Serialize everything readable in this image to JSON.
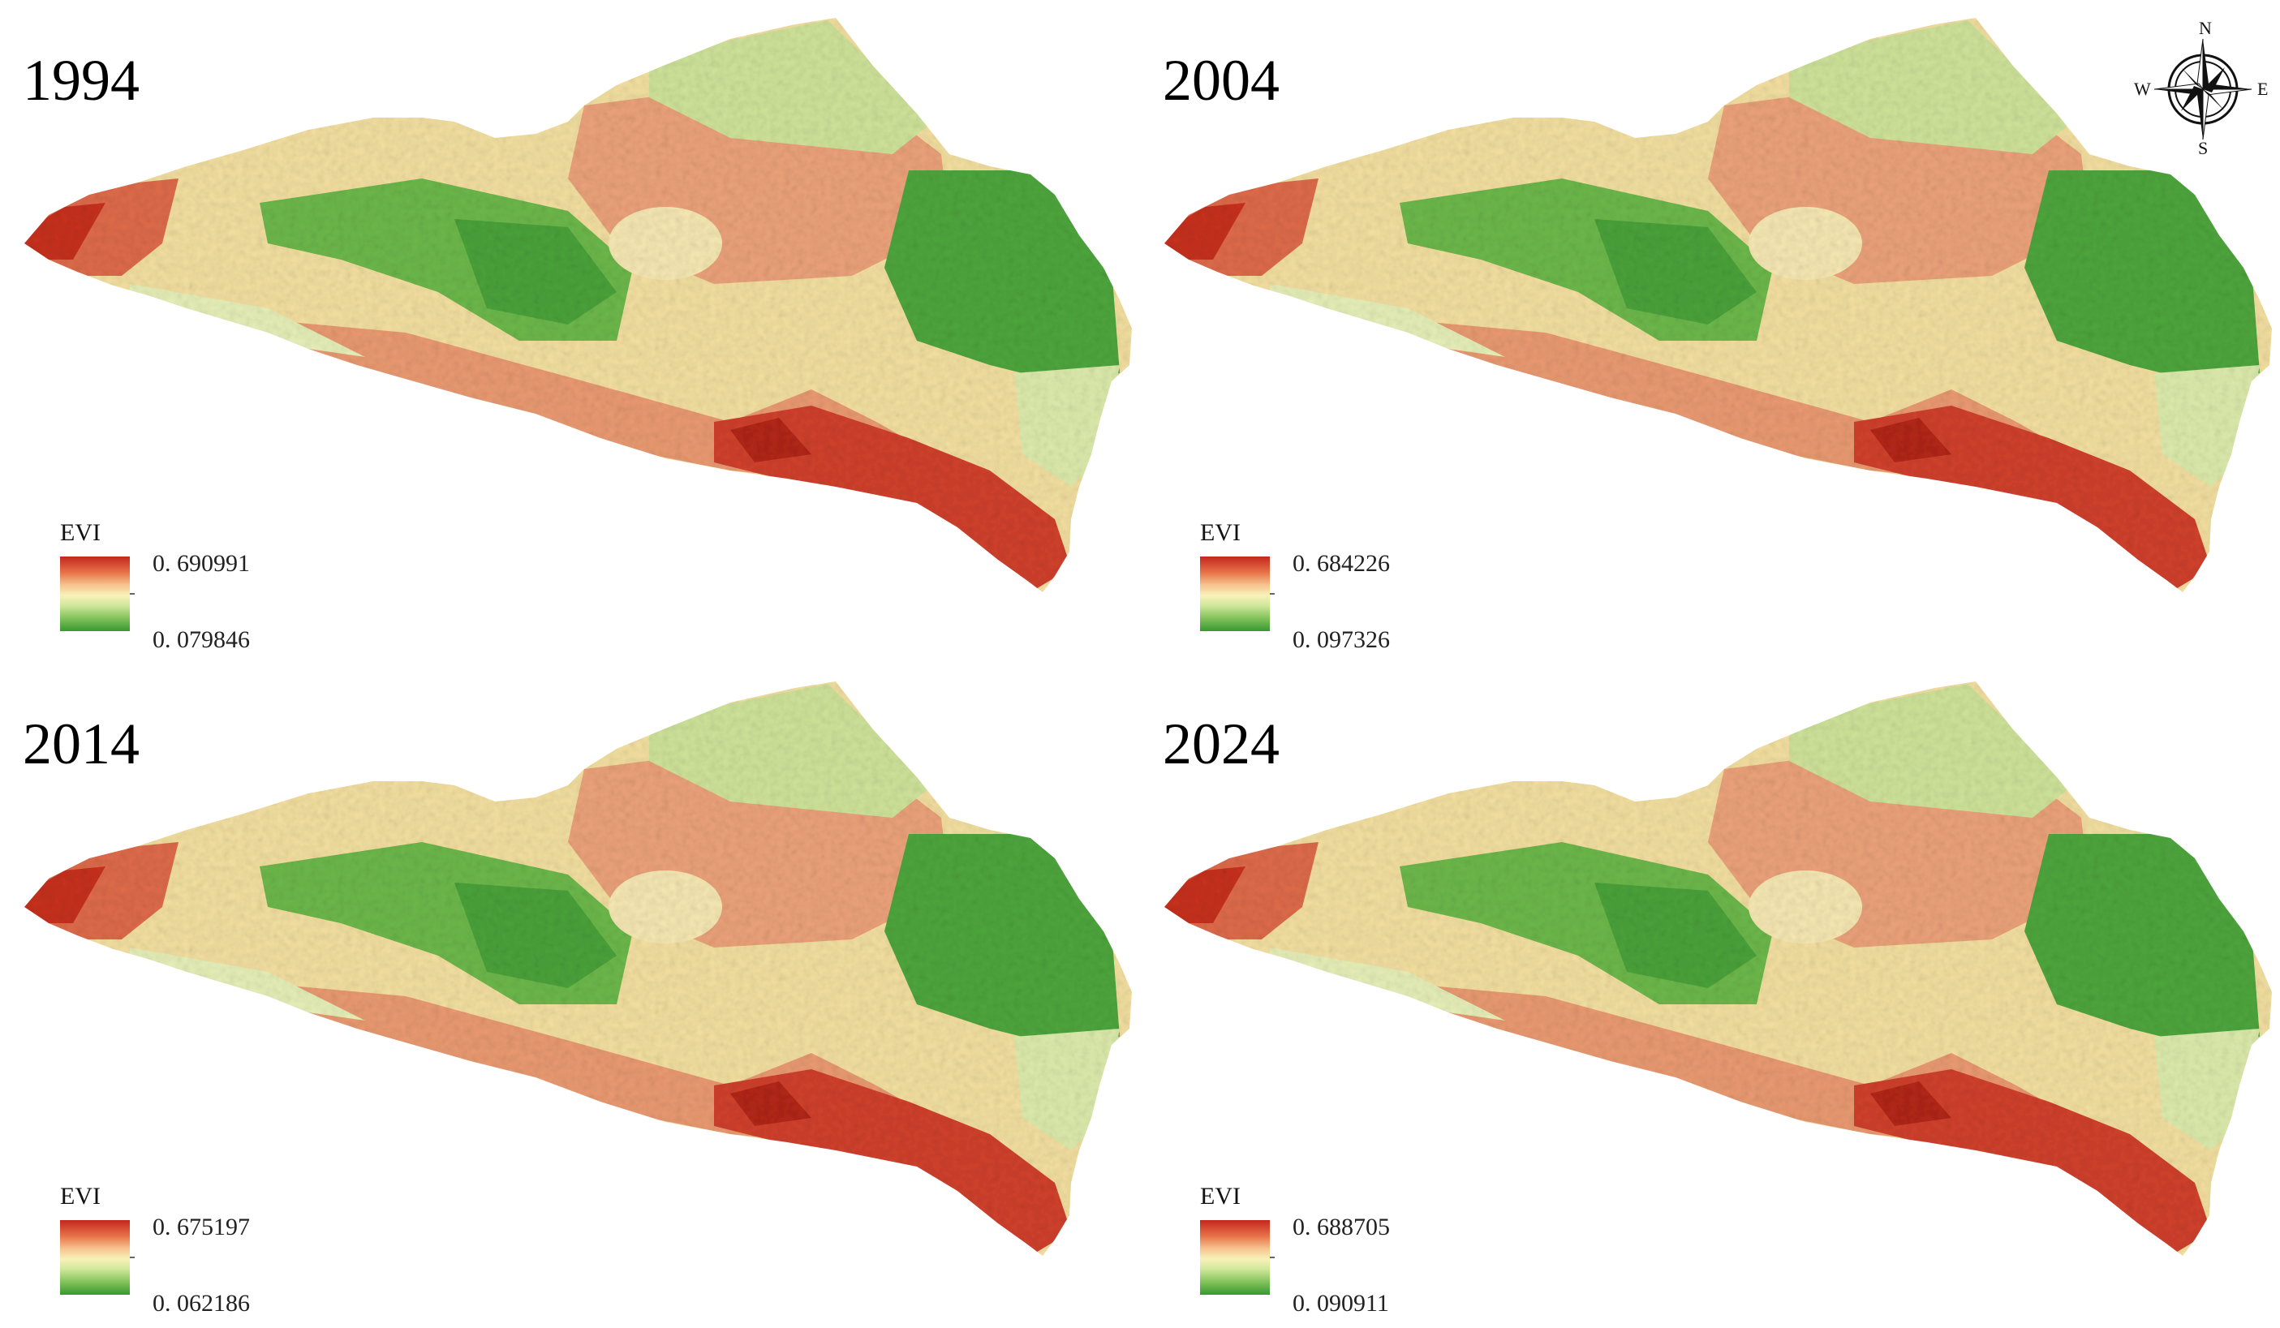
{
  "figure": {
    "legend_title": "EVI",
    "colors": {
      "high": "#c3261d",
      "mid_high": "#e8754a",
      "mid": "#f7f2b8",
      "mid_low": "#86c45e",
      "low": "#37982f"
    },
    "panels": [
      {
        "year": "1994",
        "evi_max": "0. 690991",
        "evi_min": "0. 079846"
      },
      {
        "year": "2004",
        "evi_max": "0. 684226",
        "evi_min": "0. 097326"
      },
      {
        "year": "2014",
        "evi_max": "0. 675197",
        "evi_min": "0. 062186"
      },
      {
        "year": "2024",
        "evi_max": "0. 688705",
        "evi_min": "0. 090911"
      }
    ]
  },
  "compass": {
    "n": "N",
    "e": "E",
    "s": "S",
    "w": "W",
    "icon": "compass-rose-icon"
  }
}
